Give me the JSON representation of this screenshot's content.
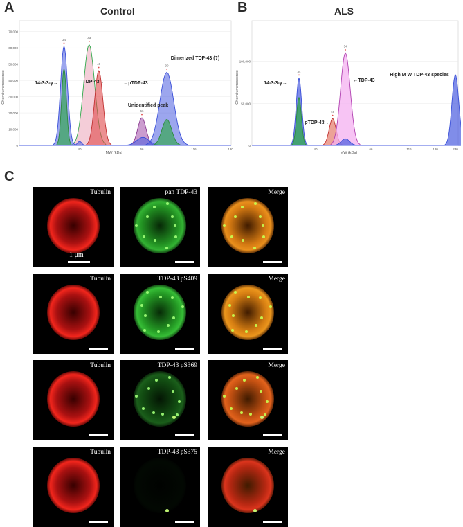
{
  "panels": {
    "a": "A",
    "b": "B",
    "c": "C"
  },
  "colors": {
    "blue": "#4a5de0",
    "green": "#2fa84a",
    "pink": "#f0b8c8",
    "red": "#e0484a",
    "purple": "#a04aa8",
    "violet": "#f4b0f0"
  },
  "chart_data": [
    {
      "type": "line",
      "title": "Control",
      "xlabel": "MW (kDa)",
      "ylabel": "Chemiluminescence",
      "yticks": [
        "0",
        "10,000",
        "20,000",
        "30,000",
        "40,000",
        "50,000",
        "60,000",
        "70,000"
      ],
      "xticks": [
        "40",
        "66",
        "116",
        "180"
      ],
      "ylim": [
        0,
        75000
      ],
      "annotations": [
        {
          "text": "14-3-3-γ→",
          "peak_label": "34"
        },
        {
          "text": "TDP-43→",
          "peak_label": "44"
        },
        {
          "text": "←pTDP-43",
          "peak_label": "48"
        },
        {
          "text": "Unidentified peak",
          "peak_label": "66"
        },
        {
          "text": "Dimerized TDP-43 (?)",
          "peak_label": "90"
        }
      ],
      "series": [
        {
          "peaks": [
            {
              "x": 34,
              "y": 61000
            },
            {
              "x": 40,
              "y": 2500
            },
            {
              "x": 67,
              "y": 5000
            },
            {
              "x": 90,
              "y": 45000
            }
          ]
        },
        {
          "peaks": [
            {
              "x": 34,
              "y": 47000
            },
            {
              "x": 90,
              "y": 16000
            }
          ]
        },
        {
          "peaks": [
            {
              "x": 44,
              "y": 62000
            }
          ]
        },
        {
          "peaks": [
            {
              "x": 48,
              "y": 46000
            }
          ]
        },
        {
          "peaks": [
            {
              "x": 66,
              "y": 17000
            }
          ]
        }
      ]
    },
    {
      "type": "line",
      "title": "ALS",
      "xlabel": "MW (kDa)",
      "ylabel": "Chemiluminescence",
      "yticks": [
        "0",
        "50,000",
        "100,000"
      ],
      "xticks": [
        "40",
        "66",
        "116",
        "180",
        "230"
      ],
      "ylim": [
        0,
        145000
      ],
      "annotations": [
        {
          "text": "14-3-3-γ→",
          "peak_label": "34"
        },
        {
          "text": "pTDP-43→",
          "peak_label": "48"
        },
        {
          "text": "←TDP-43",
          "peak_label": "54"
        },
        {
          "text": "High M W TDP-43 species",
          "peak_label": ""
        }
      ],
      "series": [
        {
          "peaks": [
            {
              "x": 34,
              "y": 80000
            },
            {
              "x": 54,
              "y": 8000
            },
            {
              "x": 230,
              "y": 84000
            }
          ]
        },
        {
          "peaks": [
            {
              "x": 34,
              "y": 57000
            }
          ]
        },
        {
          "peaks": [
            {
              "x": 48,
              "y": 32000
            }
          ]
        },
        {
          "peaks": [
            {
              "x": 54,
              "y": 110000
            }
          ]
        }
      ]
    }
  ],
  "micro": {
    "rows": [
      {
        "tubulin": "Tubulin",
        "green": "pan TDP-43",
        "merge": "Merge"
      },
      {
        "tubulin": "Tubulin",
        "green": "TDP-43 pS409",
        "merge": "Merge"
      },
      {
        "tubulin": "Tubulin",
        "green": "TDP-43 pS369",
        "merge": "Merge"
      },
      {
        "tubulin": "Tubulin",
        "green": "TDP-43 pS375",
        "merge": "Merge"
      }
    ],
    "scale_label": "1 μm"
  }
}
